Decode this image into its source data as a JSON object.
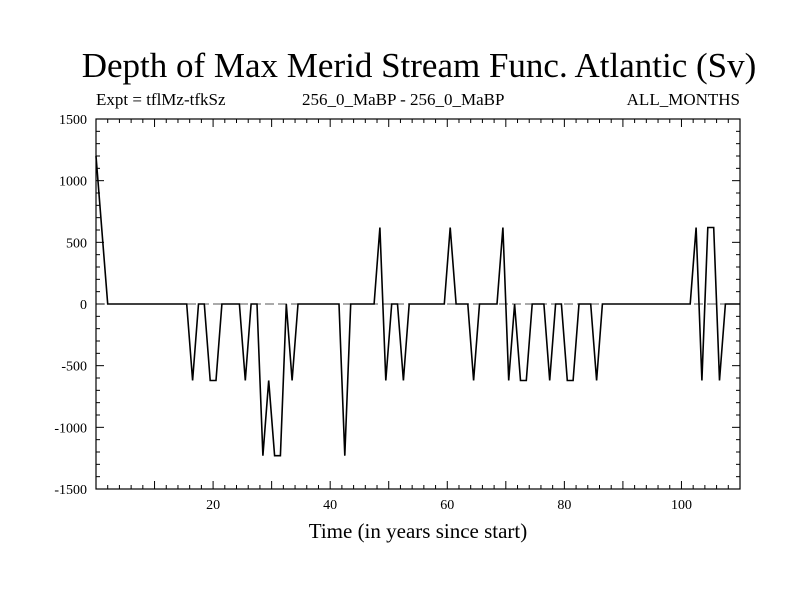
{
  "chart_data": {
    "type": "line",
    "title": "Depth of Max Merid Stream Func. Atlantic (Sv)",
    "subtitle_left": "Expt = tflMz-tfkSz",
    "subtitle_center": "256_0_MaBP - 256_0_MaBP",
    "subtitle_right": "ALL_MONTHS",
    "xlabel": "Time (in years since start)",
    "ylabel": "",
    "xlim": [
      0,
      110
    ],
    "ylim": [
      -1500,
      1500
    ],
    "x_ticks": [
      20,
      40,
      60,
      80,
      100
    ],
    "y_ticks": [
      -1500,
      -1000,
      -500,
      0,
      500,
      1000,
      1500
    ],
    "zero_line": "dashed",
    "series": [
      {
        "name": "depth",
        "x": [
          0,
          2,
          15.5,
          16.5,
          17.5,
          18.5,
          19.5,
          20.5,
          21.5,
          24.5,
          25.5,
          26.5,
          27.5,
          28.5,
          29.5,
          30.5,
          31.5,
          32.5,
          33.5,
          34.5,
          35.5,
          41.5,
          42.5,
          43.5,
          46.5,
          47.5,
          48.5,
          49.5,
          50.5,
          51.5,
          52.5,
          53.5,
          54.5,
          58.5,
          59.5,
          60.5,
          61.5,
          62.5,
          63.5,
          64.5,
          65.5,
          66.5,
          68.5,
          69.5,
          70.5,
          71.5,
          72.5,
          73.5,
          74.5,
          75.5,
          76.5,
          77.5,
          78.5,
          79.5,
          80.5,
          81.5,
          82.5,
          83.5,
          84.5,
          85.5,
          86.5,
          87.5,
          88.5,
          101.5,
          102.5,
          103.5,
          104.5,
          105.5,
          106.5,
          107.5,
          108.5,
          110
        ],
        "values": [
          1200,
          0,
          0,
          -620,
          0,
          0,
          -620,
          -620,
          0,
          0,
          -620,
          0,
          0,
          -1230,
          -620,
          -1230,
          -1230,
          0,
          -620,
          0,
          0,
          0,
          -1230,
          0,
          0,
          0,
          620,
          -620,
          0,
          0,
          -620,
          0,
          0,
          0,
          0,
          620,
          0,
          0,
          0,
          -620,
          0,
          0,
          0,
          620,
          -620,
          0,
          -620,
          -620,
          0,
          0,
          0,
          -620,
          0,
          0,
          -620,
          -620,
          0,
          0,
          0,
          -620,
          0,
          0,
          0,
          0,
          620,
          -620,
          620,
          620,
          -620,
          0,
          0,
          0
        ]
      }
    ]
  }
}
